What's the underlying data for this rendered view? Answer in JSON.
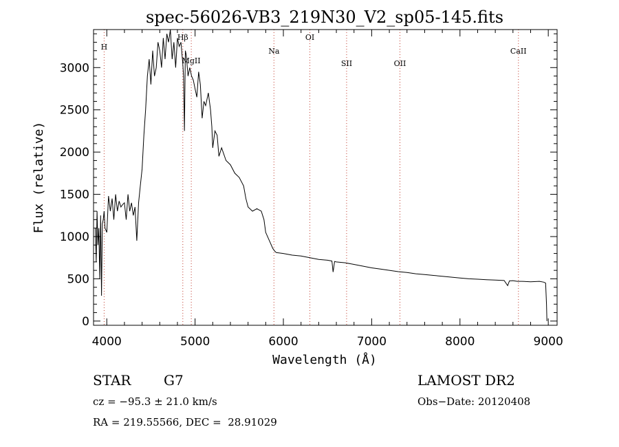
{
  "chart_data": {
    "type": "line",
    "title": "spec-56026-VB3_219N30_V2_sp05-145.fits",
    "xlabel": "Wavelength (Å)",
    "ylabel": "Flux (relative)",
    "xlim": [
      3850,
      9100
    ],
    "ylim": [
      -50,
      3450
    ],
    "x_ticks": [
      4000,
      5000,
      6000,
      7000,
      8000,
      9000
    ],
    "y_ticks": [
      0,
      500,
      1000,
      1500,
      2000,
      2500,
      3000
    ],
    "line_markers": [
      {
        "label": "H",
        "x": 3970
      },
      {
        "label": "Hβ",
        "x": 4861
      },
      {
        "label": "MgII",
        "x": 4957
      },
      {
        "label": "Na",
        "x": 5893
      },
      {
        "label": "OI",
        "x": 6300
      },
      {
        "label": "SII",
        "x": 6716
      },
      {
        "label": "OII",
        "x": 7320
      },
      {
        "label": "CaII",
        "x": 8662
      }
    ],
    "series": [
      {
        "x": [
          3870,
          3880,
          3890,
          3900,
          3910,
          3920,
          3930,
          3940,
          3950,
          3960,
          3970,
          3980,
          4000,
          4020,
          4040,
          4060,
          4080,
          4100,
          4120,
          4140,
          4160,
          4180,
          4200,
          4220,
          4240,
          4260,
          4280,
          4300,
          4320,
          4340,
          4360,
          4380,
          4400,
          4420,
          4440,
          4460,
          4480,
          4500,
          4520,
          4540,
          4560,
          4580,
          4600,
          4620,
          4640,
          4660,
          4680,
          4700,
          4720,
          4740,
          4760,
          4780,
          4800,
          4820,
          4840,
          4860,
          4870,
          4880,
          4890,
          4900,
          4920,
          4940,
          4960,
          4980,
          5000,
          5020,
          5040,
          5060,
          5080,
          5100,
          5120,
          5150,
          5175,
          5190,
          5200,
          5225,
          5250,
          5270,
          5300,
          5350,
          5400,
          5450,
          5500,
          5550,
          5575,
          5600,
          5650,
          5700,
          5750,
          5780,
          5800,
          5850,
          5880,
          5900,
          5920,
          6000,
          6100,
          6200,
          6300,
          6400,
          6500,
          6550,
          6563,
          6580,
          6600,
          6700,
          6800,
          6900,
          7000,
          7100,
          7200,
          7300,
          7400,
          7500,
          7600,
          7700,
          7800,
          7900,
          8000,
          8100,
          8200,
          8300,
          8400,
          8500,
          8540,
          8560,
          8600,
          8650,
          8700,
          8800,
          8900,
          8950,
          8970,
          8980,
          8985
        ],
        "values": [
          1100,
          700,
          1300,
          900,
          1100,
          500,
          1250,
          300,
          1150,
          1200,
          1300,
          1100,
          1050,
          1480,
          1300,
          1450,
          1200,
          1500,
          1300,
          1420,
          1350,
          1380,
          1400,
          1200,
          1500,
          1300,
          1400,
          1250,
          1350,
          950,
          1400,
          1600,
          1800,
          2200,
          2500,
          2900,
          3100,
          2800,
          3200,
          2900,
          3000,
          3300,
          3200,
          3000,
          3350,
          3100,
          3400,
          3300,
          3450,
          3100,
          3300,
          3000,
          3350,
          3250,
          3300,
          3050,
          2900,
          2250,
          3200,
          3150,
          2900,
          3000,
          2900,
          2850,
          2750,
          2650,
          2950,
          2800,
          2400,
          2600,
          2550,
          2700,
          2500,
          2300,
          2050,
          2250,
          2200,
          1950,
          2050,
          1900,
          1850,
          1750,
          1700,
          1600,
          1450,
          1350,
          1300,
          1330,
          1300,
          1200,
          1050,
          930,
          860,
          830,
          810,
          800,
          780,
          770,
          750,
          730,
          720,
          710,
          580,
          705,
          700,
          690,
          670,
          650,
          630,
          615,
          600,
          585,
          575,
          560,
          550,
          540,
          530,
          520,
          510,
          500,
          495,
          490,
          485,
          480,
          420,
          475,
          478,
          470,
          470,
          465,
          470,
          460,
          450,
          200,
          0
        ]
      }
    ]
  },
  "info": {
    "class_label": "STAR",
    "subclass": "G7",
    "redshift": "cz = −95.3 ± 21.0 km/s",
    "coords": "RA = 219.55566, DEC =  28.91029",
    "survey": "LAMOST DR2",
    "obs_date": "Obs−Date: 20120408"
  }
}
